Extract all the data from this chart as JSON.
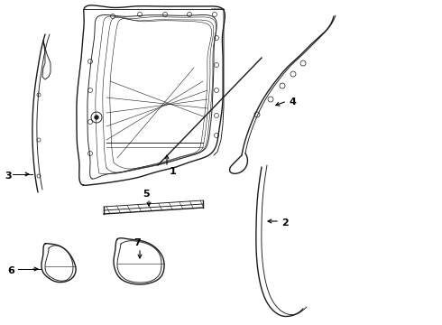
{
  "background_color": "#ffffff",
  "line_color": "#1a1a1a",
  "lw_main": 1.0,
  "lw_med": 0.65,
  "lw_thin": 0.4,
  "door_outer": {
    "x": [
      1.1,
      1.05,
      1.0,
      0.98,
      1.0,
      1.05,
      1.12,
      1.22,
      1.35,
      1.52,
      1.75,
      2.05,
      2.35,
      2.58,
      2.72,
      2.78,
      2.8,
      2.8,
      2.78,
      2.72,
      2.62,
      2.5,
      2.35,
      2.18,
      2.02,
      1.9,
      1.82,
      1.78,
      1.75,
      1.72,
      1.68,
      1.62,
      1.52,
      1.38,
      1.22,
      1.1
    ],
    "y": [
      1.4,
      1.6,
      1.85,
      2.15,
      2.45,
      2.72,
      2.98,
      3.22,
      3.45,
      3.65,
      3.82,
      3.95,
      4.02,
      4.05,
      4.0,
      3.9,
      3.75,
      3.4,
      3.1,
      2.88,
      2.7,
      2.55,
      2.42,
      2.3,
      2.2,
      2.1,
      2.0,
      1.88,
      1.75,
      1.65,
      1.58,
      1.52,
      1.48,
      1.44,
      1.42,
      1.4
    ]
  },
  "door_inner1": {
    "x": [
      1.22,
      1.18,
      1.15,
      1.14,
      1.16,
      1.2,
      1.28,
      1.38,
      1.52,
      1.7,
      1.95,
      2.22,
      2.45,
      2.6,
      2.68,
      2.7,
      2.7,
      2.68,
      2.62,
      2.52,
      2.38,
      2.22,
      2.08,
      1.96,
      1.88,
      1.8,
      1.74,
      1.68,
      1.62,
      1.54,
      1.44,
      1.32,
      1.22
    ],
    "y": [
      1.52,
      1.7,
      1.94,
      2.22,
      2.5,
      2.76,
      3.0,
      3.22,
      3.44,
      3.62,
      3.76,
      3.88,
      3.94,
      3.92,
      3.82,
      3.68,
      3.38,
      3.1,
      2.9,
      2.74,
      2.6,
      2.48,
      2.38,
      2.28,
      2.18,
      2.08,
      1.98,
      1.88,
      1.78,
      1.68,
      1.6,
      1.55,
      1.52
    ]
  },
  "door_inner2": {
    "x": [
      1.3,
      1.26,
      1.23,
      1.22,
      1.24,
      1.28,
      1.36,
      1.46,
      1.6,
      1.78,
      2.02,
      2.28,
      2.49,
      2.62,
      2.68,
      2.69,
      2.69,
      2.66,
      2.6,
      2.5,
      2.37,
      2.22,
      2.09,
      1.97,
      1.88,
      1.81,
      1.75,
      1.69,
      1.63,
      1.55,
      1.44,
      1.32,
      1.3
    ],
    "y": [
      1.58,
      1.76,
      2.0,
      2.26,
      2.53,
      2.78,
      3.02,
      3.23,
      3.44,
      3.62,
      3.75,
      3.86,
      3.92,
      3.9,
      3.8,
      3.66,
      3.38,
      3.11,
      2.92,
      2.76,
      2.63,
      2.51,
      2.41,
      2.31,
      2.22,
      2.12,
      2.02,
      1.92,
      1.82,
      1.72,
      1.63,
      1.58,
      1.58
    ]
  },
  "door_inner3": {
    "x": [
      1.38,
      1.34,
      1.31,
      1.3,
      1.32,
      1.36,
      1.44,
      1.54,
      1.67,
      1.84,
      2.07,
      2.31,
      2.5,
      2.61,
      2.66,
      2.67,
      2.67,
      2.64,
      2.58,
      2.48,
      2.36,
      2.21,
      2.09,
      1.98,
      1.89,
      1.82,
      1.76,
      1.7,
      1.63,
      1.55,
      1.44,
      1.38
    ],
    "y": [
      1.64,
      1.81,
      2.04,
      2.3,
      2.56,
      2.8,
      3.03,
      3.24,
      3.44,
      3.61,
      3.74,
      3.84,
      3.9,
      3.88,
      3.78,
      3.64,
      3.38,
      3.12,
      2.93,
      2.77,
      2.65,
      2.53,
      2.43,
      2.34,
      2.25,
      2.15,
      2.05,
      1.95,
      1.85,
      1.75,
      1.66,
      1.64
    ]
  }
}
